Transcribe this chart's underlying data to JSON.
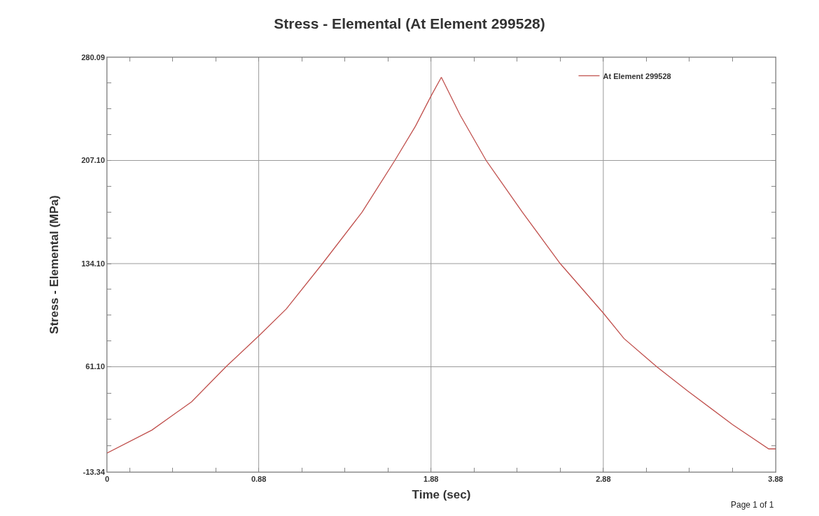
{
  "chart_data": {
    "type": "line",
    "title": "Stress - Elemental (At Element 299528)",
    "xlabel": "Time (sec)",
    "ylabel": "Stress - Elemental (MPa)",
    "annotations": [
      "Page 1 of 1"
    ],
    "series": [
      {
        "name": "At Element 299528",
        "color": "#c0504d",
        "x": [
          0,
          0.26,
          0.49,
          0.69,
          0.88,
          1.04,
          1.25,
          1.48,
          1.67,
          1.79,
          1.88,
          1.94,
          2.05,
          2.2,
          2.41,
          2.63,
          2.88,
          3.0,
          3.19,
          3.37,
          3.63,
          3.84,
          3.88
        ],
        "values": [
          0,
          16.3,
          36.3,
          61.1,
          82.9,
          102,
          134.1,
          170.5,
          207.1,
          231.4,
          252.7,
          266,
          239,
          207.1,
          170.5,
          134.1,
          99.1,
          81.1,
          61.1,
          43.9,
          20.2,
          3,
          3
        ]
      }
    ],
    "xlim": [
      0,
      3.88
    ],
    "xticks": [
      0,
      {
        "value": 0.13,
        "label": null
      },
      {
        "value": 0.38,
        "label": null
      },
      {
        "value": 0.63,
        "label": null
      },
      0.88,
      {
        "value": 1.13,
        "label": null
      },
      {
        "value": 1.38,
        "label": null
      },
      {
        "value": 1.63,
        "label": null
      },
      1.88,
      {
        "value": 2.13,
        "label": null
      },
      {
        "value": 2.38,
        "label": null
      },
      {
        "value": 2.63,
        "label": null
      },
      2.88,
      {
        "value": 3.13,
        "label": null
      },
      {
        "value": 3.38,
        "label": null
      },
      {
        "value": 3.63,
        "label": null
      },
      3.88
    ],
    "ylim": [
      -13.34,
      280.09
    ],
    "yticks": [
      -13.34,
      {
        "value": 5.27,
        "label": null
      },
      {
        "value": 23.88,
        "label": null
      },
      {
        "value": 42.49,
        "label": null
      },
      {
        "value": 61.1,
        "label": "61.10"
      },
      {
        "value": 79.35,
        "label": null
      },
      {
        "value": 97.6,
        "label": null
      },
      {
        "value": 115.85,
        "label": null
      },
      {
        "value": 134.1,
        "label": "134.10"
      },
      {
        "value": 152.35,
        "label": null
      },
      {
        "value": 170.6,
        "label": null
      },
      {
        "value": 188.85,
        "label": null
      },
      {
        "value": 207.1,
        "label": "207.10"
      },
      {
        "value": 225.35,
        "label": null
      },
      {
        "value": 243.6,
        "label": null
      },
      {
        "value": 261.85,
        "label": null
      },
      280.09
    ],
    "grid": true,
    "legend": "top right",
    "marker": "none",
    "line_style": "solid"
  }
}
